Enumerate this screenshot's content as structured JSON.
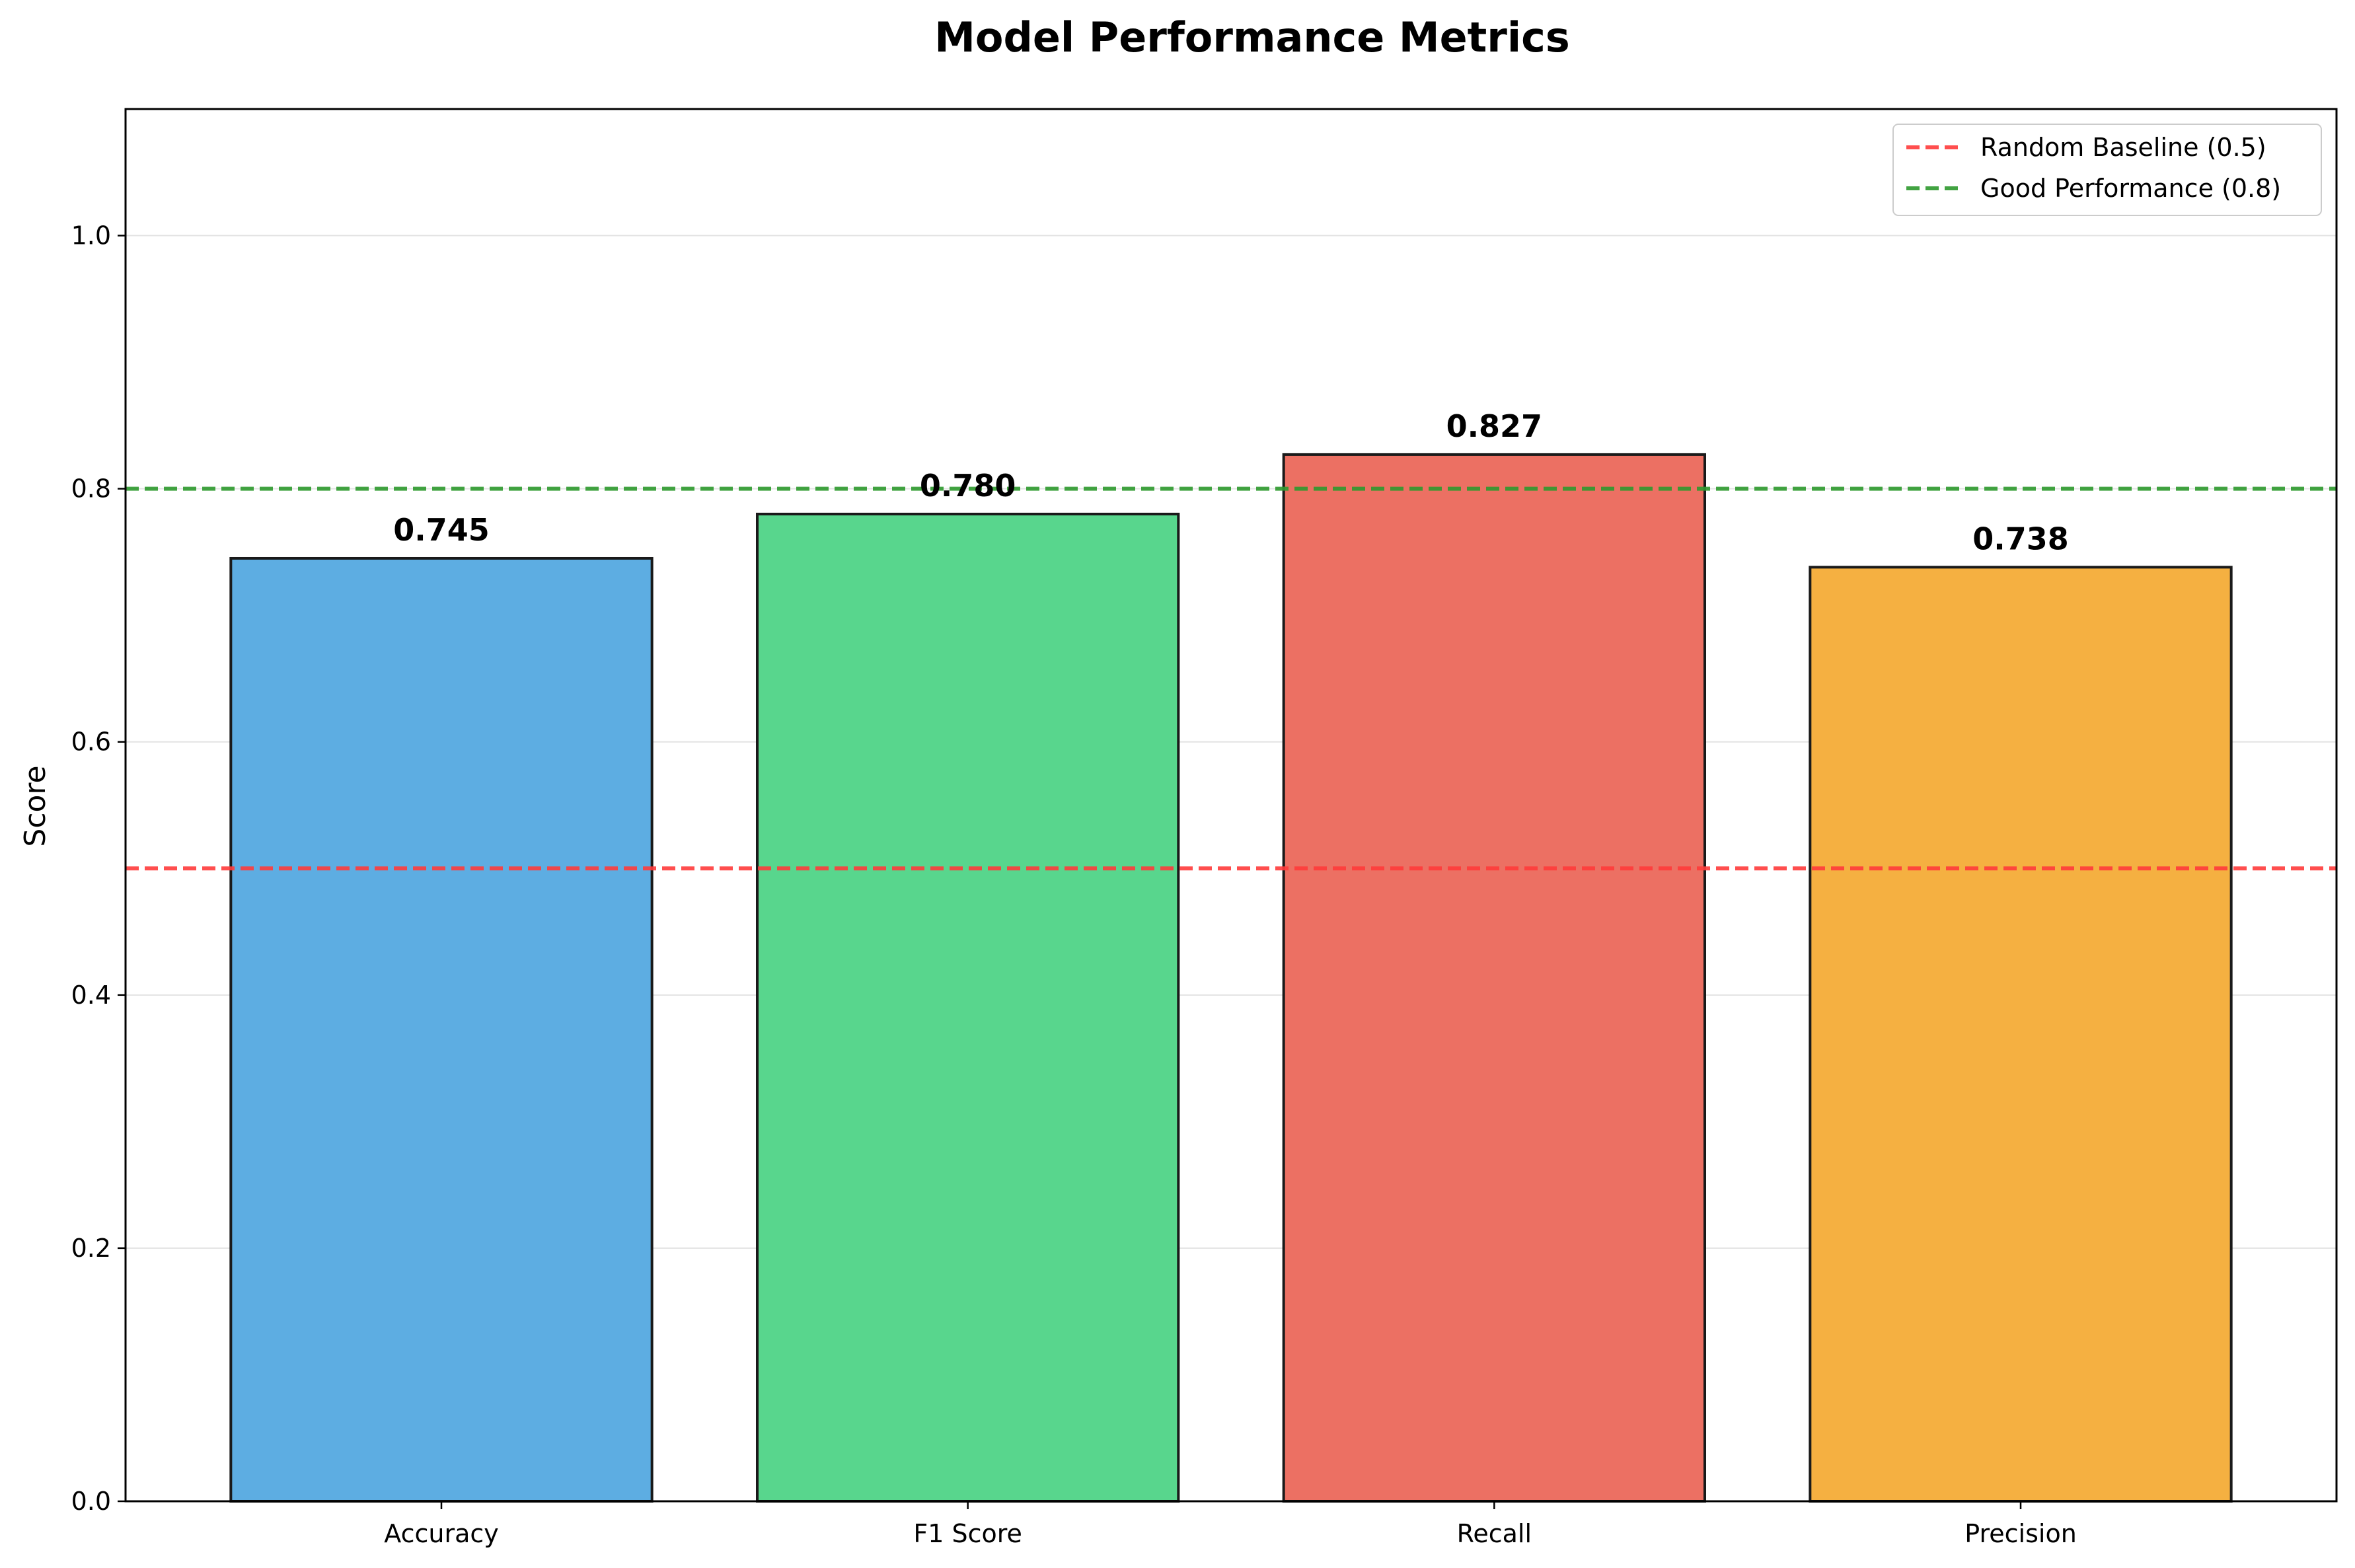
{
  "chart_data": {
    "type": "bar",
    "title": "Model Performance Metrics",
    "xlabel": "",
    "ylabel": "Score",
    "categories": [
      "Accuracy",
      "F1 Score",
      "Recall",
      "Precision"
    ],
    "values": [
      0.745,
      0.78,
      0.827,
      0.738
    ],
    "value_labels": [
      "0.745",
      "0.780",
      "0.827",
      "0.738"
    ],
    "bar_colors": [
      "#5dade2",
      "#58d68d",
      "#ec7063",
      "#f5b041"
    ],
    "bar_edge_color": "#1a1a1a",
    "ylim": [
      0,
      1.1
    ],
    "yticks": [
      0.0,
      0.2,
      0.4,
      0.6,
      0.8,
      1.0
    ],
    "ytick_labels": [
      "0.0",
      "0.2",
      "0.4",
      "0.6",
      "0.8",
      "1.0"
    ],
    "grid": "horizontal",
    "reference_lines": [
      {
        "label": "Random Baseline (0.5)",
        "y": 0.5,
        "color": "#ff3b3b",
        "style": "dashed"
      },
      {
        "label": "Good Performance (0.8)",
        "y": 0.8,
        "color": "#2e9a2e",
        "style": "dashed"
      }
    ],
    "legend_position": "top-right"
  }
}
